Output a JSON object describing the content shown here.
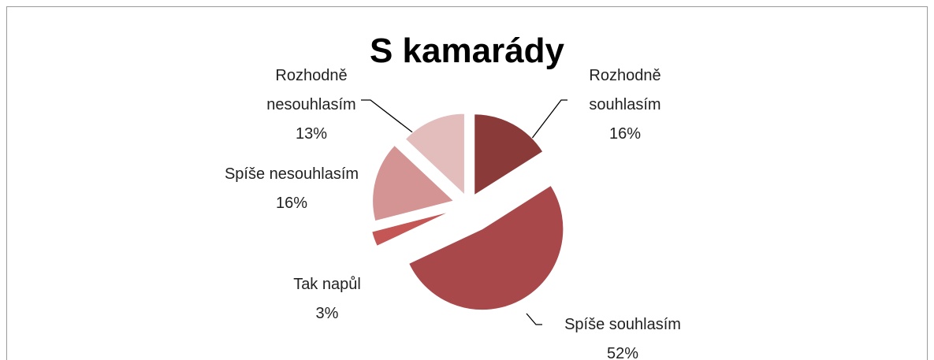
{
  "chart_data": {
    "type": "pie",
    "title": "S kamarády",
    "categories": [
      "Rozhodně souhlasím",
      "Spíše souhlasím",
      "Tak napůl",
      "Spíše nesouhlasím",
      "Rozhodně nesouhlasím"
    ],
    "values": [
      16,
      52,
      3,
      16,
      13
    ],
    "value_labels": [
      "16%",
      "52%",
      "3%",
      "16%",
      "13%"
    ],
    "colors": [
      "#8b3a3a",
      "#a8484a",
      "#c45655",
      "#d49494",
      "#e3bcbc"
    ]
  }
}
